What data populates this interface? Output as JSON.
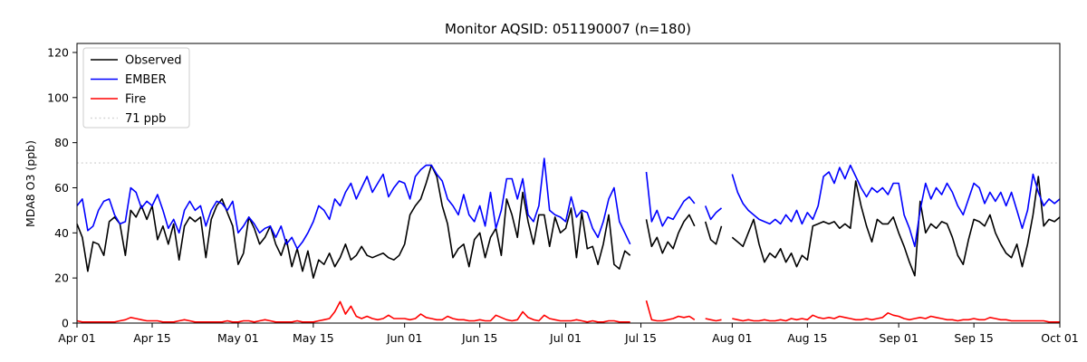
{
  "figure": {
    "title": "Monitor AQSID: 051190007 (n=180)",
    "y_axis_label": "MDA8 O3 (ppb)"
  },
  "chart_data": {
    "type": "line",
    "title": "Monitor AQSID: 051190007 (n=180)",
    "xlabel": "",
    "ylabel": "MDA8 O3 (ppb)",
    "x_range": [
      "Apr 01",
      "Oct 01"
    ],
    "n_days": 184,
    "n_observations": 180,
    "missing_days": [
      "Jul 14",
      "Jul 15",
      "Jul 26",
      "Jul 31"
    ],
    "ylim": [
      0,
      124
    ],
    "y_ticks": [
      0,
      20,
      40,
      60,
      80,
      100,
      120
    ],
    "x_ticks": [
      {
        "day": 0,
        "label": "Apr 01"
      },
      {
        "day": 14,
        "label": "Apr 15"
      },
      {
        "day": 30,
        "label": "May 01"
      },
      {
        "day": 44,
        "label": "May 15"
      },
      {
        "day": 61,
        "label": "Jun 01"
      },
      {
        "day": 75,
        "label": "Jun 15"
      },
      {
        "day": 91,
        "label": "Jul 01"
      },
      {
        "day": 105,
        "label": "Jul 15"
      },
      {
        "day": 122,
        "label": "Aug 01"
      },
      {
        "day": 136,
        "label": "Aug 15"
      },
      {
        "day": 153,
        "label": "Sep 01"
      },
      {
        "day": 167,
        "label": "Sep 15"
      },
      {
        "day": 183,
        "label": "Oct 01"
      }
    ],
    "reference_line": {
      "value": 71,
      "label": "71 ppb",
      "color": "#d3d3d3",
      "style": "dotted"
    },
    "legend": {
      "position": "upper left",
      "entries": [
        "Observed",
        "EMBER",
        "Fire",
        "71 ppb"
      ]
    },
    "series": [
      {
        "name": "Observed",
        "color": "#000000",
        "values": [
          44,
          38,
          23,
          36,
          35,
          30,
          45,
          47,
          44,
          30,
          50,
          47,
          52,
          46,
          52,
          37,
          43,
          35,
          44,
          28,
          43,
          47,
          45,
          47,
          29,
          46,
          52,
          55,
          49,
          43,
          26,
          31,
          47,
          42,
          35,
          38,
          43,
          35,
          30,
          37,
          25,
          33,
          23,
          32,
          20,
          28,
          26,
          31,
          25,
          29,
          35,
          28,
          30,
          34,
          30,
          29,
          30,
          31,
          29,
          28,
          30,
          35,
          48,
          52,
          55,
          62,
          70,
          65,
          52,
          44,
          29,
          33,
          35,
          25,
          37,
          40,
          29,
          38,
          42,
          30,
          55,
          48,
          38,
          58,
          45,
          35,
          48,
          48,
          34,
          47,
          40,
          42,
          51,
          29,
          49,
          33,
          34,
          26,
          35,
          48,
          26,
          24,
          32,
          30,
          null,
          null,
          46,
          34,
          38,
          31,
          36,
          33,
          40,
          45,
          48,
          43,
          null,
          45,
          37,
          35,
          43,
          null,
          38,
          36,
          34,
          40,
          46,
          35,
          27,
          31,
          29,
          33,
          27,
          31,
          25,
          30,
          28,
          43,
          44,
          45,
          44,
          45,
          42,
          44,
          42,
          63,
          52,
          43,
          36,
          46,
          44,
          44,
          47,
          40,
          34,
          27,
          21,
          54,
          40,
          44,
          42,
          45,
          44,
          38,
          30,
          26,
          37,
          46,
          45,
          43,
          48,
          40,
          35,
          31,
          29,
          35,
          25,
          35,
          48,
          65,
          43,
          46,
          45,
          47
        ]
      },
      {
        "name": "EMBER",
        "color": "#0000ff",
        "values": [
          52,
          55,
          41,
          43,
          50,
          54,
          55,
          48,
          44,
          45,
          60,
          58,
          51,
          54,
          52,
          57,
          50,
          42,
          46,
          40,
          50,
          54,
          50,
          52,
          43,
          50,
          54,
          53,
          50,
          54,
          40,
          43,
          47,
          44,
          40,
          42,
          43,
          38,
          43,
          35,
          38,
          33,
          36,
          40,
          45,
          52,
          50,
          46,
          55,
          52,
          58,
          62,
          55,
          60,
          65,
          58,
          62,
          66,
          56,
          60,
          63,
          62,
          55,
          65,
          68,
          70,
          70,
          66,
          63,
          55,
          52,
          48,
          57,
          48,
          45,
          52,
          43,
          58,
          42,
          50,
          64,
          64,
          55,
          64,
          48,
          45,
          52,
          73,
          50,
          48,
          47,
          45,
          56,
          47,
          50,
          49,
          42,
          38,
          45,
          55,
          60,
          45,
          40,
          35,
          null,
          null,
          67,
          45,
          50,
          43,
          47,
          46,
          50,
          54,
          56,
          53,
          null,
          52,
          46,
          49,
          51,
          null,
          66,
          58,
          53,
          50,
          48,
          46,
          45,
          44,
          46,
          44,
          48,
          45,
          50,
          44,
          49,
          46,
          52,
          65,
          67,
          62,
          69,
          64,
          70,
          65,
          60,
          56,
          60,
          58,
          60,
          57,
          62,
          62,
          48,
          42,
          34,
          50,
          62,
          55,
          60,
          57,
          62,
          58,
          52,
          48,
          55,
          62,
          60,
          53,
          58,
          54,
          58,
          52,
          58,
          50,
          42,
          50,
          66,
          58,
          52,
          55,
          53,
          55
        ]
      },
      {
        "name": "Fire",
        "color": "#ff0000",
        "values": [
          1,
          0.5,
          0.5,
          0.5,
          0.5,
          0.5,
          0.5,
          0.5,
          1,
          1.5,
          2.5,
          2,
          1.5,
          1,
          1,
          1,
          0.5,
          0.5,
          0.5,
          1,
          1.5,
          1,
          0.5,
          0.5,
          0.5,
          0.5,
          0.5,
          0.5,
          1,
          0.5,
          0.5,
          1,
          1,
          0.5,
          1,
          1.5,
          1,
          0.5,
          0.5,
          0.5,
          0.5,
          1,
          0.5,
          0.5,
          0.5,
          1,
          1.5,
          2,
          5,
          9.5,
          4,
          7.5,
          3,
          2,
          3,
          2,
          1.5,
          2,
          3.5,
          2,
          2,
          2,
          1.5,
          2,
          4,
          2.5,
          2,
          1.5,
          1.5,
          3,
          2,
          1.5,
          1.5,
          1,
          1,
          1.5,
          1,
          1,
          3.5,
          2.5,
          1.5,
          1,
          1.5,
          5,
          2.5,
          1.5,
          1,
          3.5,
          2,
          1.5,
          1,
          1,
          1,
          1.5,
          1,
          0.5,
          1,
          0.5,
          0.5,
          1,
          1,
          0.5,
          0.5,
          0.5,
          null,
          null,
          10,
          1.5,
          1,
          1,
          1.5,
          2,
          3,
          2.5,
          3,
          1.5,
          null,
          2,
          1.5,
          1,
          1.5,
          null,
          2,
          1.5,
          1,
          1.5,
          1,
          1,
          1.5,
          1,
          1,
          1.5,
          1,
          2,
          1.5,
          2,
          1.5,
          3.5,
          2.5,
          2,
          2.5,
          2,
          3,
          2.5,
          2,
          1.5,
          1.5,
          2,
          1.5,
          2,
          2.5,
          4.5,
          3.5,
          3,
          2,
          1.5,
          2,
          2.5,
          2,
          3,
          2.5,
          2,
          1.5,
          1.5,
          1,
          1.5,
          1.5,
          2,
          1.5,
          1.5,
          2.5,
          2,
          1.5,
          1.5,
          1,
          1,
          1,
          1,
          1,
          1,
          1,
          0.5,
          0.5,
          0.5
        ]
      }
    ]
  }
}
